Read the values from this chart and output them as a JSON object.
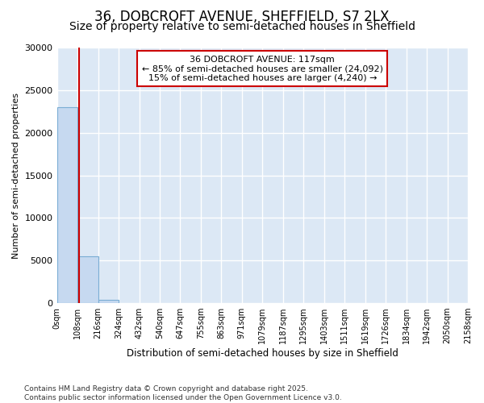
{
  "title": "36, DOBCROFT AVENUE, SHEFFIELD, S7 2LX",
  "subtitle": "Size of property relative to semi-detached houses in Sheffield",
  "xlabel": "Distribution of semi-detached houses by size in Sheffield",
  "ylabel": "Number of semi-detached properties",
  "bin_edges": [
    0,
    108,
    216,
    324,
    432,
    540,
    647,
    755,
    863,
    971,
    1079,
    1187,
    1295,
    1403,
    1511,
    1619,
    1726,
    1834,
    1942,
    2050,
    2158
  ],
  "bar_heights": [
    23000,
    5500,
    400,
    0,
    0,
    0,
    0,
    0,
    0,
    0,
    0,
    0,
    0,
    0,
    0,
    0,
    0,
    0,
    0,
    0
  ],
  "bar_color": "#c6d9f0",
  "bar_edge_color": "#7aadd4",
  "property_size": 117,
  "red_line_color": "#cc0000",
  "annotation_text": "36 DOBCROFT AVENUE: 117sqm\n← 85% of semi-detached houses are smaller (24,092)\n15% of semi-detached houses are larger (4,240) →",
  "annotation_box_color": "#cc0000",
  "ylim": [
    0,
    30000
  ],
  "yticks": [
    0,
    5000,
    10000,
    15000,
    20000,
    25000,
    30000
  ],
  "footer_text": "Contains HM Land Registry data © Crown copyright and database right 2025.\nContains public sector information licensed under the Open Government Licence v3.0.",
  "plot_bg_color": "#dce8f5",
  "fig_bg_color": "#ffffff",
  "title_fontsize": 12,
  "subtitle_fontsize": 10,
  "grid_color": "#ffffff"
}
